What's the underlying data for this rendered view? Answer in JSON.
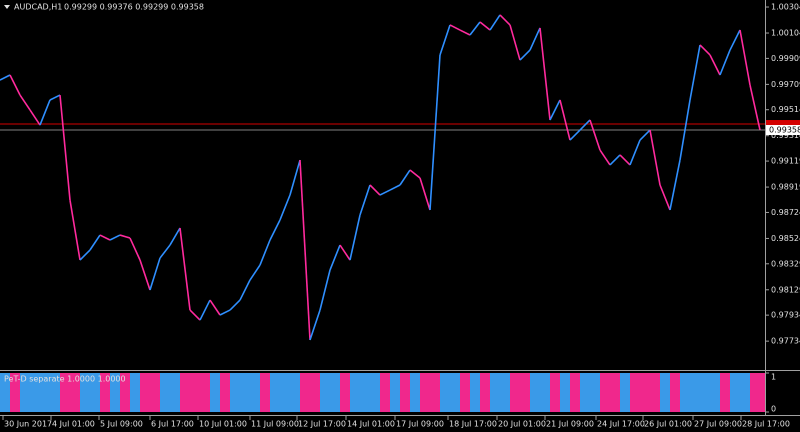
{
  "chart_data": [
    {
      "type": "line",
      "symbol": "AUDCAD,H1",
      "ohlc": "0.99299 0.99376 0.99299 0.99358",
      "values": [
        0.99742,
        0.99781,
        0.99627,
        0.99512,
        0.99396,
        0.99589,
        0.99627,
        0.98819,
        0.98358,
        0.98435,
        0.9855,
        0.98512,
        0.9855,
        0.98527,
        0.98358,
        0.98127,
        0.98373,
        0.98473,
        0.98604,
        0.97973,
        0.97896,
        0.9805,
        0.97935,
        0.97973,
        0.9805,
        0.98204,
        0.98319,
        0.98512,
        0.98666,
        0.98858,
        0.99127,
        0.97743,
        0.97973,
        0.98281,
        0.98473,
        0.98358,
        0.98704,
        0.98935,
        0.98858,
        0.98896,
        0.98935,
        0.9905,
        0.98989,
        0.98743,
        0.99935,
        1.00166,
        1.00127,
        1.00089,
        1.00189,
        1.00127,
        1.00243,
        1.00166,
        0.99896,
        0.99973,
        1.00143,
        0.99435,
        0.99589,
        0.99281,
        0.99358,
        0.99435,
        0.99204,
        0.99089,
        0.99166,
        0.99089,
        0.99281,
        0.99358,
        0.98935,
        0.98743,
        0.99127,
        0.99589,
        1.00012,
        0.99935,
        0.99781,
        0.99973,
        1.00127,
        0.99704,
        0.99358
      ],
      "up_color": "#2f8fff",
      "down_color": "#ff2a9d",
      "xlim": [
        0,
        76.5
      ],
      "xticks": [
        {
          "value": 0.3,
          "label": "30 Jun 2017"
        },
        {
          "value": 5.1,
          "label": "4 Jul 01:00"
        },
        {
          "value": 9.9,
          "label": "5 Jul 09:00"
        },
        {
          "value": 15,
          "label": "6 Jul 17:00"
        },
        {
          "value": 19.8,
          "label": "10 Jul 01:00"
        },
        {
          "value": 25,
          "label": "11 Jul 09:00"
        },
        {
          "value": 29.7,
          "label": "12 Jul 17:00"
        },
        {
          "value": 34.6,
          "label": "14 Jul 01:00"
        },
        {
          "value": 39.5,
          "label": "17 Jul 09:00"
        },
        {
          "value": 44.8,
          "label": "18 Jul 17:00"
        },
        {
          "value": 49.7,
          "label": "20 Jul 01:00"
        },
        {
          "value": 54.5,
          "label": "21 Jul 09:00"
        },
        {
          "value": 59.6,
          "label": "24 Jul 17:00"
        },
        {
          "value": 64.3,
          "label": "26 Jul 01:00"
        },
        {
          "value": 69.3,
          "label": "27 Jul 09:00"
        },
        {
          "value": 74.1,
          "label": "28 Jul 17:00"
        }
      ],
      "ylim": [
        0.97512,
        1.00358
      ],
      "yticks": [
        1.00304,
        1.00104,
        0.99909,
        0.99709,
        0.99514,
        0.99314,
        0.99119,
        0.98919,
        0.98724,
        0.98524,
        0.98329,
        0.98129,
        0.97934,
        0.97734
      ],
      "price_label": 0.99358,
      "level_line": {
        "value": 0.99404,
        "color": "#d40000"
      }
    },
    {
      "type": "bar",
      "title": "PeT-D separate 1.0000 1.0000",
      "series": [
        {
          "color": "#3a9ae8",
          "values": [
            1,
            0,
            1,
            1,
            1,
            1,
            0,
            0,
            1,
            1,
            0,
            1,
            0,
            1,
            0,
            0,
            1,
            1,
            0,
            0,
            0,
            1,
            0,
            1,
            1,
            1,
            0,
            1,
            1,
            1,
            0,
            0,
            1,
            1,
            0,
            1,
            1,
            1,
            0,
            1,
            0,
            1,
            0,
            0,
            1,
            1,
            0,
            1,
            0,
            1,
            1,
            0,
            0,
            1,
            1,
            0,
            1,
            0,
            1,
            1,
            0,
            0,
            1,
            0,
            0,
            0,
            1,
            0,
            1,
            1,
            1,
            1,
            0,
            1,
            1,
            0,
            0
          ]
        },
        {
          "color": "#f0288c",
          "values": [
            0,
            1,
            0,
            0,
            0,
            0,
            1,
            1,
            0,
            0,
            1,
            0,
            1,
            0,
            1,
            1,
            0,
            0,
            1,
            1,
            1,
            0,
            1,
            0,
            0,
            0,
            1,
            0,
            0,
            0,
            1,
            1,
            0,
            0,
            1,
            0,
            0,
            0,
            1,
            0,
            1,
            0,
            1,
            1,
            0,
            0,
            1,
            0,
            1,
            0,
            0,
            1,
            1,
            0,
            0,
            1,
            0,
            1,
            0,
            0,
            1,
            1,
            0,
            1,
            1,
            1,
            0,
            1,
            0,
            0,
            0,
            0,
            1,
            0,
            0,
            1,
            1
          ]
        }
      ],
      "ylim": [
        0,
        1
      ],
      "yticks": [
        1,
        0
      ]
    }
  ]
}
